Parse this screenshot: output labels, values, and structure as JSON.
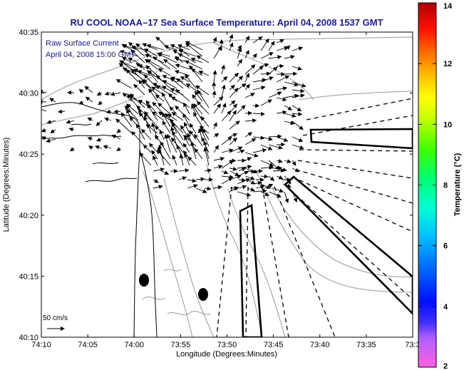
{
  "title": "RU COOL  NOAA–17  Sea Surface Temperature:  April 04, 2008 1537 GMT",
  "legend": {
    "line1": "Raw Surface Current",
    "line2": "April 04, 2008 15:00 GMT"
  },
  "axes": {
    "xlabel": "Longitude (Degrees:Minutes)",
    "ylabel": "Latitude (Degrees:Minutes)",
    "xticks": [
      "74:10",
      "74:05",
      "74:00",
      "73:55",
      "73:50",
      "73:45",
      "73:40",
      "73:35",
      "73:3"
    ],
    "yticks": [
      "40:35",
      "40:30",
      "40:25",
      "40:20",
      "40:15",
      "40:10"
    ]
  },
  "colorbar": {
    "label": "Temperature (°C)",
    "ticks": [
      "14",
      "12",
      "10",
      "8",
      "6",
      "4",
      "2"
    ],
    "min": 2,
    "max": 14
  },
  "scale": {
    "label": "50 cm/s"
  },
  "colors": {
    "title": "#1a1aa8",
    "coast": "#000000",
    "contour": "#888888"
  }
}
